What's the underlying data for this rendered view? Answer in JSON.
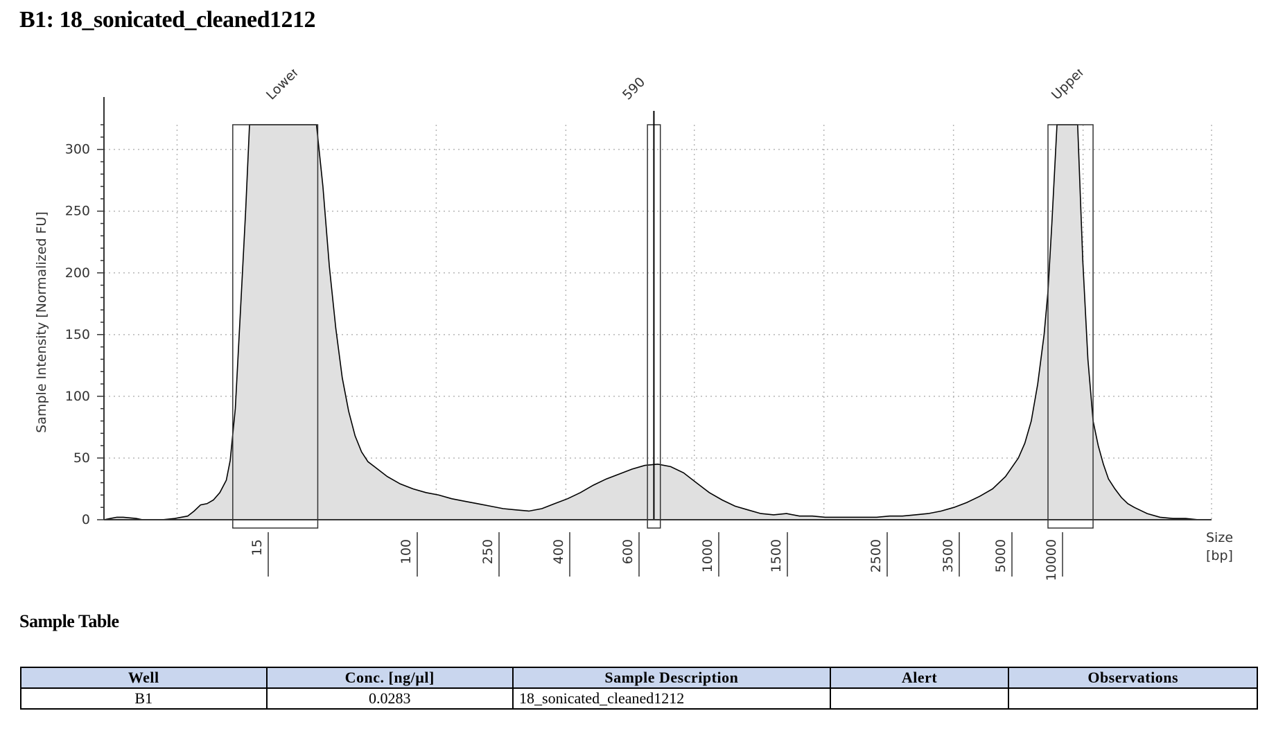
{
  "page": {
    "title": "B1: 18_sonicated_cleaned1212"
  },
  "chart_data": {
    "type": "area",
    "ylabel": "Sample Intensity [Normalized FU]",
    "xlabel": "Size [bp]",
    "xlabel_lines": [
      "Size",
      "[bp]"
    ],
    "ylim": [
      0,
      320
    ],
    "yticks": [
      0,
      50,
      100,
      150,
      200,
      250,
      300
    ],
    "x_ticks_bp": [
      "15",
      "100",
      "250",
      "400",
      "600",
      "1000",
      "1500",
      "2500",
      "3500",
      "5000",
      "10000"
    ],
    "peak_labels": [
      "Lower",
      "590",
      "Upper"
    ],
    "grid": true,
    "fill_color": "#e0e0e0",
    "line_color": "#000000",
    "trace": [
      [
        0.0,
        0
      ],
      [
        0.5,
        1
      ],
      [
        1.0,
        2
      ],
      [
        1.5,
        2
      ],
      [
        2.5,
        1
      ],
      [
        3.0,
        0
      ],
      [
        4.5,
        0
      ],
      [
        5.5,
        1
      ],
      [
        6.5,
        3
      ],
      [
        7.0,
        7
      ],
      [
        7.5,
        12
      ],
      [
        8.0,
        13
      ],
      [
        8.5,
        16
      ],
      [
        9.0,
        22
      ],
      [
        9.5,
        32
      ],
      [
        9.8,
        48
      ],
      [
        10.2,
        90
      ],
      [
        10.6,
        170
      ],
      [
        11.0,
        250
      ],
      [
        11.3,
        320
      ],
      [
        16.5,
        320
      ],
      [
        17.0,
        270
      ],
      [
        17.5,
        205
      ],
      [
        18.0,
        155
      ],
      [
        18.5,
        115
      ],
      [
        19.0,
        88
      ],
      [
        19.5,
        68
      ],
      [
        20.0,
        55
      ],
      [
        20.5,
        47
      ],
      [
        21.0,
        43
      ],
      [
        22.0,
        35
      ],
      [
        23.0,
        29
      ],
      [
        24.0,
        25
      ],
      [
        25.0,
        22
      ],
      [
        26.0,
        20
      ],
      [
        27.0,
        17
      ],
      [
        28.0,
        15
      ],
      [
        29.0,
        13
      ],
      [
        30.0,
        11
      ],
      [
        31.0,
        9
      ],
      [
        32.0,
        8
      ],
      [
        33.0,
        7
      ],
      [
        34.0,
        9
      ],
      [
        35.0,
        13
      ],
      [
        36.0,
        17
      ],
      [
        37.0,
        22
      ],
      [
        38.0,
        28
      ],
      [
        39.0,
        33
      ],
      [
        40.0,
        37
      ],
      [
        41.0,
        41
      ],
      [
        42.0,
        44
      ],
      [
        43.0,
        45
      ],
      [
        44.0,
        43
      ],
      [
        45.0,
        38
      ],
      [
        46.0,
        30
      ],
      [
        47.0,
        22
      ],
      [
        48.0,
        16
      ],
      [
        49.0,
        11
      ],
      [
        50.0,
        8
      ],
      [
        51.0,
        5
      ],
      [
        52.0,
        4
      ],
      [
        53.0,
        5
      ],
      [
        54.0,
        3
      ],
      [
        55.0,
        3
      ],
      [
        56.0,
        2
      ],
      [
        57.0,
        2
      ],
      [
        58.0,
        2
      ],
      [
        59.0,
        2
      ],
      [
        60.0,
        2
      ],
      [
        61.0,
        3
      ],
      [
        62.0,
        3
      ],
      [
        63.0,
        4
      ],
      [
        64.0,
        5
      ],
      [
        65.0,
        7
      ],
      [
        66.0,
        10
      ],
      [
        67.0,
        14
      ],
      [
        68.0,
        19
      ],
      [
        69.0,
        25
      ],
      [
        70.0,
        35
      ],
      [
        71.0,
        50
      ],
      [
        71.5,
        62
      ],
      [
        72.0,
        80
      ],
      [
        72.5,
        110
      ],
      [
        73.0,
        150
      ],
      [
        73.3,
        185
      ],
      [
        73.6,
        240
      ],
      [
        74.0,
        320
      ],
      [
        75.6,
        320
      ],
      [
        76.0,
        210
      ],
      [
        76.4,
        130
      ],
      [
        76.8,
        80
      ],
      [
        77.2,
        60
      ],
      [
        77.6,
        45
      ],
      [
        78.0,
        33
      ],
      [
        78.5,
        25
      ],
      [
        79.0,
        18
      ],
      [
        79.5,
        13
      ],
      [
        80.0,
        10
      ],
      [
        81.0,
        5
      ],
      [
        82.0,
        2
      ],
      [
        83.0,
        1
      ],
      [
        84.0,
        1
      ],
      [
        85.0,
        0
      ],
      [
        86.0,
        0
      ]
    ],
    "marker_boxes": [
      {
        "label": "Lower",
        "x0": 10.0,
        "x1": 16.6
      },
      {
        "label": "590",
        "x0": 42.2,
        "x1": 43.2
      },
      {
        "label": "Upper",
        "x0": 73.3,
        "x1": 76.8
      }
    ]
  },
  "sample_table": {
    "title": "Sample Table",
    "headers": [
      "Well",
      "Conc. [ng/µl]",
      "Sample Description",
      "Alert",
      "Observations"
    ],
    "row": {
      "well": "B1",
      "conc": "0.0283",
      "description": "18_sonicated_cleaned1212",
      "alert": "",
      "observations": ""
    }
  }
}
